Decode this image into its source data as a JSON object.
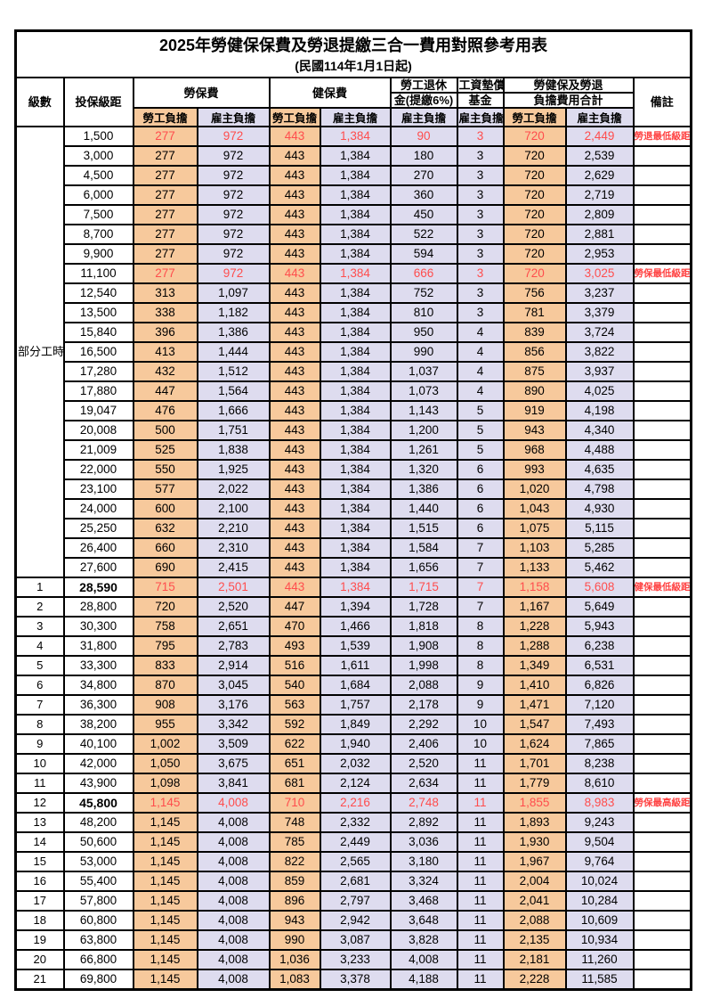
{
  "title": "2025年勞健保保費及勞退提繳三合一費用對照參考用表",
  "subtitle": "(民國114年1月1日起)",
  "colors": {
    "employee_bg": "#F7C99C",
    "employer_bg": "#DEDCEF",
    "highlight_red": "#FF4D4D",
    "border": "#000000"
  },
  "header": {
    "level": "級數",
    "bracket": "投保級距",
    "labor_group": "勞保費",
    "health_group": "健保費",
    "pension_line1": "勞工退休",
    "pension_line2": "金(提繳6%)",
    "wage_fund_line1": "工資墊償",
    "wage_fund_line2": "基金",
    "total_line1": "勞健保及勞退",
    "total_line2": "負擔費用合計",
    "notes": "備註",
    "employee": "勞工負擔",
    "employer": "雇主負擔"
  },
  "section_label": "部分工時",
  "part_time_row_count": 23,
  "rows": [
    {
      "level": "",
      "bracket": "1,500",
      "values": [
        "277",
        "972",
        "443",
        "1,384",
        "90",
        "3",
        "720",
        "2,449"
      ],
      "note": "勞退最低級距",
      "red": true,
      "bold": false
    },
    {
      "level": "",
      "bracket": "3,000",
      "values": [
        "277",
        "972",
        "443",
        "1,384",
        "180",
        "3",
        "720",
        "2,539"
      ],
      "note": "",
      "red": false,
      "bold": false
    },
    {
      "level": "",
      "bracket": "4,500",
      "values": [
        "277",
        "972",
        "443",
        "1,384",
        "270",
        "3",
        "720",
        "2,629"
      ],
      "note": "",
      "red": false,
      "bold": false
    },
    {
      "level": "",
      "bracket": "6,000",
      "values": [
        "277",
        "972",
        "443",
        "1,384",
        "360",
        "3",
        "720",
        "2,719"
      ],
      "note": "",
      "red": false,
      "bold": false
    },
    {
      "level": "",
      "bracket": "7,500",
      "values": [
        "277",
        "972",
        "443",
        "1,384",
        "450",
        "3",
        "720",
        "2,809"
      ],
      "note": "",
      "red": false,
      "bold": false
    },
    {
      "level": "",
      "bracket": "8,700",
      "values": [
        "277",
        "972",
        "443",
        "1,384",
        "522",
        "3",
        "720",
        "2,881"
      ],
      "note": "",
      "red": false,
      "bold": false
    },
    {
      "level": "",
      "bracket": "9,900",
      "values": [
        "277",
        "972",
        "443",
        "1,384",
        "594",
        "3",
        "720",
        "2,953"
      ],
      "note": "",
      "red": false,
      "bold": false
    },
    {
      "level": "",
      "bracket": "11,100",
      "values": [
        "277",
        "972",
        "443",
        "1,384",
        "666",
        "3",
        "720",
        "3,025"
      ],
      "note": "勞保最低級距",
      "red": true,
      "bold": false
    },
    {
      "level": "",
      "bracket": "12,540",
      "values": [
        "313",
        "1,097",
        "443",
        "1,384",
        "752",
        "3",
        "756",
        "3,237"
      ],
      "note": "",
      "red": false,
      "bold": false
    },
    {
      "level": "",
      "bracket": "13,500",
      "values": [
        "338",
        "1,182",
        "443",
        "1,384",
        "810",
        "3",
        "781",
        "3,379"
      ],
      "note": "",
      "red": false,
      "bold": false
    },
    {
      "level": "",
      "bracket": "15,840",
      "values": [
        "396",
        "1,386",
        "443",
        "1,384",
        "950",
        "4",
        "839",
        "3,724"
      ],
      "note": "",
      "red": false,
      "bold": false
    },
    {
      "level": "",
      "bracket": "16,500",
      "values": [
        "413",
        "1,444",
        "443",
        "1,384",
        "990",
        "4",
        "856",
        "3,822"
      ],
      "note": "",
      "red": false,
      "bold": false
    },
    {
      "level": "",
      "bracket": "17,280",
      "values": [
        "432",
        "1,512",
        "443",
        "1,384",
        "1,037",
        "4",
        "875",
        "3,937"
      ],
      "note": "",
      "red": false,
      "bold": false
    },
    {
      "level": "",
      "bracket": "17,880",
      "values": [
        "447",
        "1,564",
        "443",
        "1,384",
        "1,073",
        "4",
        "890",
        "4,025"
      ],
      "note": "",
      "red": false,
      "bold": false
    },
    {
      "level": "",
      "bracket": "19,047",
      "values": [
        "476",
        "1,666",
        "443",
        "1,384",
        "1,143",
        "5",
        "919",
        "4,198"
      ],
      "note": "",
      "red": false,
      "bold": false
    },
    {
      "level": "",
      "bracket": "20,008",
      "values": [
        "500",
        "1,751",
        "443",
        "1,384",
        "1,200",
        "5",
        "943",
        "4,340"
      ],
      "note": "",
      "red": false,
      "bold": false
    },
    {
      "level": "",
      "bracket": "21,009",
      "values": [
        "525",
        "1,838",
        "443",
        "1,384",
        "1,261",
        "5",
        "968",
        "4,488"
      ],
      "note": "",
      "red": false,
      "bold": false
    },
    {
      "level": "",
      "bracket": "22,000",
      "values": [
        "550",
        "1,925",
        "443",
        "1,384",
        "1,320",
        "6",
        "993",
        "4,635"
      ],
      "note": "",
      "red": false,
      "bold": false
    },
    {
      "level": "",
      "bracket": "23,100",
      "values": [
        "577",
        "2,022",
        "443",
        "1,384",
        "1,386",
        "6",
        "1,020",
        "4,798"
      ],
      "note": "",
      "red": false,
      "bold": false
    },
    {
      "level": "",
      "bracket": "24,000",
      "values": [
        "600",
        "2,100",
        "443",
        "1,384",
        "1,440",
        "6",
        "1,043",
        "4,930"
      ],
      "note": "",
      "red": false,
      "bold": false
    },
    {
      "level": "",
      "bracket": "25,250",
      "values": [
        "632",
        "2,210",
        "443",
        "1,384",
        "1,515",
        "6",
        "1,075",
        "5,115"
      ],
      "note": "",
      "red": false,
      "bold": false
    },
    {
      "level": "",
      "bracket": "26,400",
      "values": [
        "660",
        "2,310",
        "443",
        "1,384",
        "1,584",
        "7",
        "1,103",
        "5,285"
      ],
      "note": "",
      "red": false,
      "bold": false
    },
    {
      "level": "",
      "bracket": "27,600",
      "values": [
        "690",
        "2,415",
        "443",
        "1,384",
        "1,656",
        "7",
        "1,133",
        "5,462"
      ],
      "note": "",
      "red": false,
      "bold": false
    },
    {
      "level": "1",
      "bracket": "28,590",
      "values": [
        "715",
        "2,501",
        "443",
        "1,384",
        "1,715",
        "7",
        "1,158",
        "5,608"
      ],
      "note": "健保最低級距",
      "red": true,
      "bold": true
    },
    {
      "level": "2",
      "bracket": "28,800",
      "values": [
        "720",
        "2,520",
        "447",
        "1,394",
        "1,728",
        "7",
        "1,167",
        "5,649"
      ],
      "note": "",
      "red": false,
      "bold": false
    },
    {
      "level": "3",
      "bracket": "30,300",
      "values": [
        "758",
        "2,651",
        "470",
        "1,466",
        "1,818",
        "8",
        "1,228",
        "5,943"
      ],
      "note": "",
      "red": false,
      "bold": false
    },
    {
      "level": "4",
      "bracket": "31,800",
      "values": [
        "795",
        "2,783",
        "493",
        "1,539",
        "1,908",
        "8",
        "1,288",
        "6,238"
      ],
      "note": "",
      "red": false,
      "bold": false
    },
    {
      "level": "5",
      "bracket": "33,300",
      "values": [
        "833",
        "2,914",
        "516",
        "1,611",
        "1,998",
        "8",
        "1,349",
        "6,531"
      ],
      "note": "",
      "red": false,
      "bold": false
    },
    {
      "level": "6",
      "bracket": "34,800",
      "values": [
        "870",
        "3,045",
        "540",
        "1,684",
        "2,088",
        "9",
        "1,410",
        "6,826"
      ],
      "note": "",
      "red": false,
      "bold": false
    },
    {
      "level": "7",
      "bracket": "36,300",
      "values": [
        "908",
        "3,176",
        "563",
        "1,757",
        "2,178",
        "9",
        "1,471",
        "7,120"
      ],
      "note": "",
      "red": false,
      "bold": false
    },
    {
      "level": "8",
      "bracket": "38,200",
      "values": [
        "955",
        "3,342",
        "592",
        "1,849",
        "2,292",
        "10",
        "1,547",
        "7,493"
      ],
      "note": "",
      "red": false,
      "bold": false
    },
    {
      "level": "9",
      "bracket": "40,100",
      "values": [
        "1,002",
        "3,509",
        "622",
        "1,940",
        "2,406",
        "10",
        "1,624",
        "7,865"
      ],
      "note": "",
      "red": false,
      "bold": false
    },
    {
      "level": "10",
      "bracket": "42,000",
      "values": [
        "1,050",
        "3,675",
        "651",
        "2,032",
        "2,520",
        "11",
        "1,701",
        "8,238"
      ],
      "note": "",
      "red": false,
      "bold": false
    },
    {
      "level": "11",
      "bracket": "43,900",
      "values": [
        "1,098",
        "3,841",
        "681",
        "2,124",
        "2,634",
        "11",
        "1,779",
        "8,610"
      ],
      "note": "",
      "red": false,
      "bold": false
    },
    {
      "level": "12",
      "bracket": "45,800",
      "values": [
        "1,145",
        "4,008",
        "710",
        "2,216",
        "2,748",
        "11",
        "1,855",
        "8,983"
      ],
      "note": "勞保最高級距",
      "red": true,
      "bold": true
    },
    {
      "level": "13",
      "bracket": "48,200",
      "values": [
        "1,145",
        "4,008",
        "748",
        "2,332",
        "2,892",
        "11",
        "1,893",
        "9,243"
      ],
      "note": "",
      "red": false,
      "bold": false
    },
    {
      "level": "14",
      "bracket": "50,600",
      "values": [
        "1,145",
        "4,008",
        "785",
        "2,449",
        "3,036",
        "11",
        "1,930",
        "9,504"
      ],
      "note": "",
      "red": false,
      "bold": false
    },
    {
      "level": "15",
      "bracket": "53,000",
      "values": [
        "1,145",
        "4,008",
        "822",
        "2,565",
        "3,180",
        "11",
        "1,967",
        "9,764"
      ],
      "note": "",
      "red": false,
      "bold": false
    },
    {
      "level": "16",
      "bracket": "55,400",
      "values": [
        "1,145",
        "4,008",
        "859",
        "2,681",
        "3,324",
        "11",
        "2,004",
        "10,024"
      ],
      "note": "",
      "red": false,
      "bold": false
    },
    {
      "level": "17",
      "bracket": "57,800",
      "values": [
        "1,145",
        "4,008",
        "896",
        "2,797",
        "3,468",
        "11",
        "2,041",
        "10,284"
      ],
      "note": "",
      "red": false,
      "bold": false
    },
    {
      "level": "18",
      "bracket": "60,800",
      "values": [
        "1,145",
        "4,008",
        "943",
        "2,942",
        "3,648",
        "11",
        "2,088",
        "10,609"
      ],
      "note": "",
      "red": false,
      "bold": false
    },
    {
      "level": "19",
      "bracket": "63,800",
      "values": [
        "1,145",
        "4,008",
        "990",
        "3,087",
        "3,828",
        "11",
        "2,135",
        "10,934"
      ],
      "note": "",
      "red": false,
      "bold": false
    },
    {
      "level": "20",
      "bracket": "66,800",
      "values": [
        "1,145",
        "4,008",
        "1,036",
        "3,233",
        "4,008",
        "11",
        "2,181",
        "11,260"
      ],
      "note": "",
      "red": false,
      "bold": false
    },
    {
      "level": "21",
      "bracket": "69,800",
      "values": [
        "1,145",
        "4,008",
        "1,083",
        "3,378",
        "4,188",
        "11",
        "2,228",
        "11,585"
      ],
      "note": "",
      "red": false,
      "bold": false
    }
  ]
}
